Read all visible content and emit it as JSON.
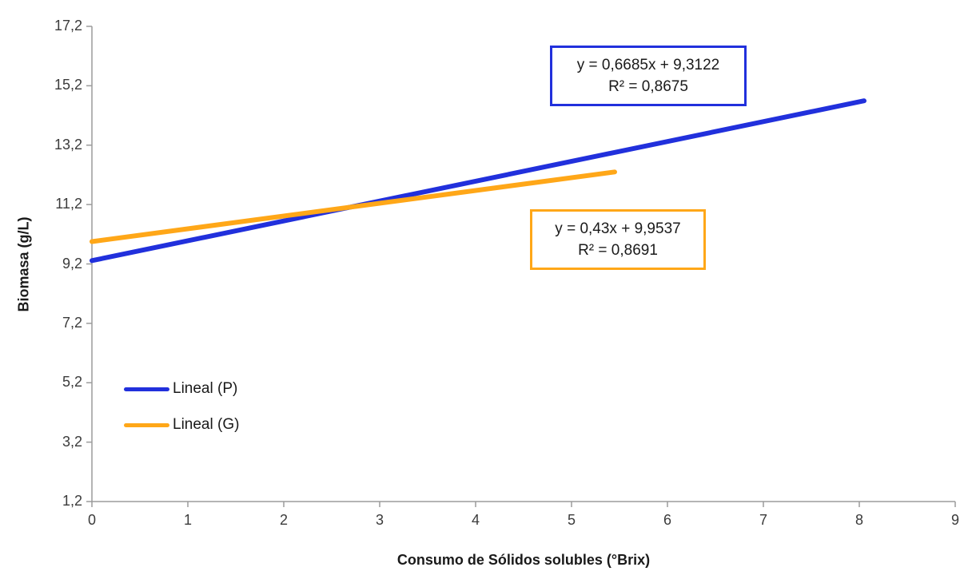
{
  "chart_data": {
    "type": "line",
    "title": "",
    "xlabel": "Consumo de Sólidos solubles (°Brix)",
    "ylabel": "Biomasa (g/L)",
    "xlim": [
      0,
      9
    ],
    "ylim": [
      1.2,
      17.2
    ],
    "x_ticks": [
      0,
      1,
      2,
      3,
      4,
      5,
      6,
      7,
      8,
      9
    ],
    "x_tick_labels": [
      "0",
      "1",
      "2",
      "3",
      "4",
      "5",
      "6",
      "7",
      "8",
      "9"
    ],
    "y_ticks": [
      1.2,
      3.2,
      5.2,
      7.2,
      9.2,
      11.2,
      13.2,
      15.2,
      17.2
    ],
    "y_tick_labels": [
      "1,2",
      "3,2",
      "5,2",
      "7,2",
      "9,2",
      "11,2",
      "13,2",
      "15,2",
      "17,2"
    ],
    "grid": false,
    "legend_position": "inside-left",
    "axis_color": "#9b9b9b",
    "series": [
      {
        "name": "Lineal (P)",
        "type": "linear-trendline",
        "color": "#2130dc",
        "slope": 0.6685,
        "intercept": 9.3122,
        "x_start": 0,
        "x_end": 8.05,
        "equation": "y = 0,6685x + 9,3122",
        "r2": "R² = 0,8675"
      },
      {
        "name": "Lineal (G)",
        "type": "linear-trendline",
        "color": "#ffa718",
        "slope": 0.43,
        "intercept": 9.9537,
        "x_start": 0,
        "x_end": 5.45,
        "equation": "y = 0,43x + 9,9537",
        "r2": "R² = 0,8691"
      }
    ]
  }
}
